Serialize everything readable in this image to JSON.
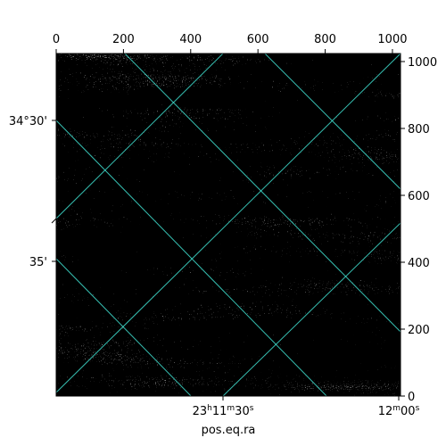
{
  "chart_data": {
    "type": "image",
    "xlabel": "pos.eq.ra",
    "xlim": [
      0,
      1024
    ],
    "xticks": [
      0,
      200,
      400,
      600,
      800,
      1000
    ],
    "ylim": [
      0,
      1024
    ],
    "yticks": [
      0,
      200,
      400,
      600,
      800,
      1000
    ],
    "wcs_left_labels": [
      "34°30'",
      "35'"
    ],
    "wcs_bottom_labels": [
      [
        "23",
        "h",
        "11",
        "m",
        "30",
        "s"
      ],
      [
        "12",
        "m",
        "00",
        "s"
      ]
    ]
  }
}
